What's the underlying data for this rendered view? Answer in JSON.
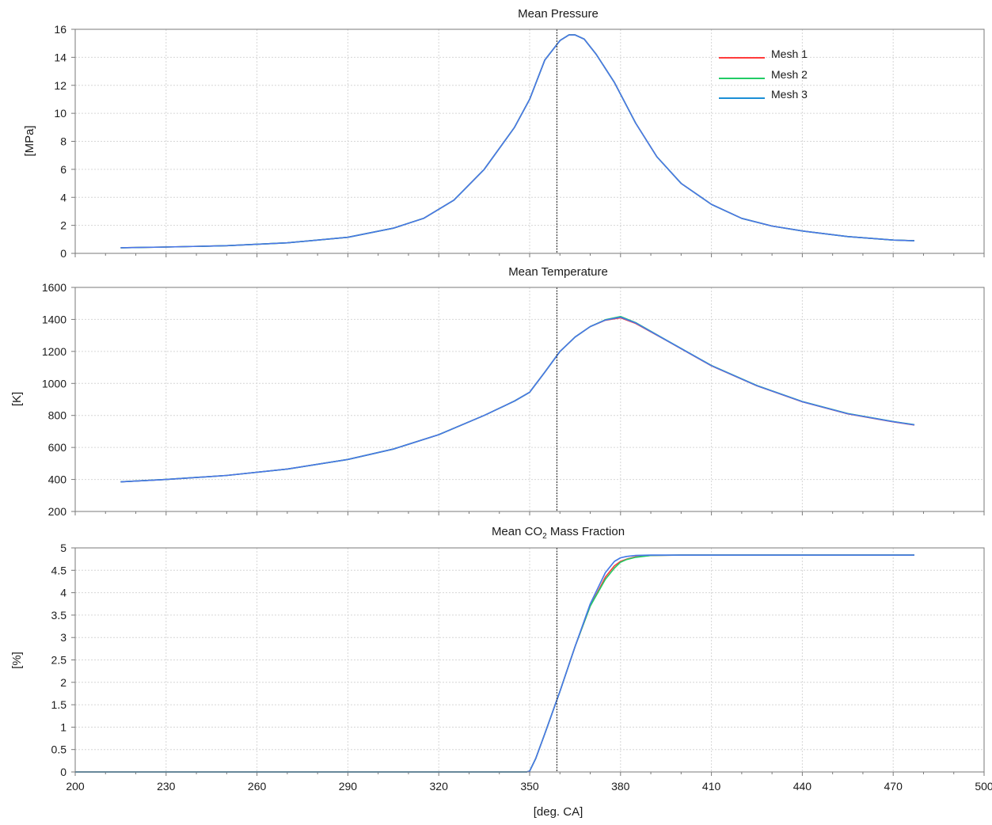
{
  "colors": {
    "mesh1": "#ff3b3b",
    "mesh2": "#22cc66",
    "mesh3": "#1b8fd6",
    "overlay": "#5a6cf0",
    "marker": "#333333",
    "grid": "#d6d6d6"
  },
  "chart_data": [
    {
      "type": "line",
      "title": "Mean Pressure",
      "xlabel": "",
      "ylabel": "[MPa]",
      "xlim": [
        200,
        500
      ],
      "ylim": [
        0,
        16
      ],
      "xticks": [
        200,
        230,
        260,
        290,
        320,
        350,
        380,
        410,
        440,
        470,
        500
      ],
      "yticks": [
        "0",
        "2",
        "4",
        "6",
        "8",
        "10",
        "12",
        "14",
        "16"
      ],
      "grid": true,
      "vline_x": 359,
      "legend": {
        "position": "top-right",
        "entries": [
          "Mesh 1",
          "Mesh 2",
          "Mesh 3"
        ]
      },
      "x": [
        215,
        230,
        250,
        270,
        290,
        305,
        315,
        325,
        335,
        345,
        350,
        355,
        360,
        363,
        365,
        368,
        372,
        378,
        385,
        392,
        400,
        410,
        420,
        430,
        440,
        455,
        470,
        477
      ],
      "series": [
        {
          "name": "Mesh 1",
          "values": [
            0.4,
            0.45,
            0.55,
            0.75,
            1.15,
            1.8,
            2.5,
            3.8,
            6.0,
            9.0,
            11.0,
            13.8,
            15.2,
            15.6,
            15.6,
            15.3,
            14.2,
            12.2,
            9.3,
            6.9,
            5.0,
            3.5,
            2.5,
            1.95,
            1.6,
            1.2,
            0.95,
            0.9
          ]
        },
        {
          "name": "Mesh 2",
          "values": [
            0.4,
            0.45,
            0.55,
            0.75,
            1.15,
            1.8,
            2.5,
            3.8,
            6.0,
            9.0,
            11.0,
            13.8,
            15.2,
            15.6,
            15.6,
            15.3,
            14.2,
            12.2,
            9.3,
            6.9,
            5.0,
            3.5,
            2.5,
            1.95,
            1.6,
            1.2,
            0.95,
            0.9
          ]
        },
        {
          "name": "Mesh 3",
          "values": [
            0.4,
            0.45,
            0.55,
            0.75,
            1.15,
            1.8,
            2.5,
            3.8,
            6.0,
            9.0,
            11.0,
            13.8,
            15.2,
            15.6,
            15.6,
            15.3,
            14.2,
            12.2,
            9.3,
            6.9,
            5.0,
            3.5,
            2.5,
            1.95,
            1.6,
            1.2,
            0.95,
            0.9
          ]
        }
      ]
    },
    {
      "type": "line",
      "title": "Mean Temperature",
      "xlabel": "",
      "ylabel": "[K]",
      "xlim": [
        200,
        500
      ],
      "ylim": [
        200,
        1600
      ],
      "xticks": [
        200,
        230,
        260,
        290,
        320,
        350,
        380,
        410,
        440,
        470,
        500
      ],
      "yticks": [
        "200",
        "400",
        "600",
        "800",
        "1000",
        "1200",
        "1400",
        "1600"
      ],
      "grid": true,
      "vline_x": 359,
      "x": [
        215,
        230,
        250,
        270,
        290,
        305,
        320,
        335,
        345,
        350,
        355,
        360,
        365,
        370,
        375,
        380,
        385,
        395,
        410,
        425,
        440,
        455,
        470,
        477
      ],
      "series": [
        {
          "name": "Mesh 1",
          "values": [
            385,
            400,
            425,
            465,
            525,
            590,
            680,
            800,
            890,
            945,
            1070,
            1200,
            1290,
            1355,
            1395,
            1410,
            1375,
            1270,
            1110,
            985,
            885,
            810,
            760,
            740
          ]
        },
        {
          "name": "Mesh 2",
          "values": [
            385,
            400,
            425,
            465,
            525,
            590,
            680,
            800,
            890,
            945,
            1070,
            1200,
            1290,
            1355,
            1398,
            1418,
            1380,
            1272,
            1112,
            987,
            887,
            812,
            762,
            742
          ]
        },
        {
          "name": "Mesh 3",
          "values": [
            385,
            400,
            425,
            465,
            525,
            590,
            680,
            800,
            890,
            945,
            1070,
            1200,
            1290,
            1355,
            1396,
            1414,
            1378,
            1271,
            1111,
            986,
            886,
            811,
            761,
            741
          ]
        }
      ]
    },
    {
      "type": "line",
      "title": "Mean CO",
      "title_sub": "2",
      "title_suffix": " Mass Fraction",
      "xlabel": "[deg. CA]",
      "ylabel": "[%]",
      "xlim": [
        200,
        500
      ],
      "ylim": [
        0,
        5
      ],
      "xticks": [
        200,
        230,
        260,
        290,
        320,
        350,
        380,
        410,
        440,
        470,
        500
      ],
      "xtick_labels": [
        "200",
        "230",
        "260",
        "290",
        "320",
        "350",
        "380",
        "410",
        "440",
        "470",
        "500"
      ],
      "yticks": [
        "0",
        "0.5",
        "1",
        "1.5",
        "2",
        "2.5",
        "3",
        "3.5",
        "4",
        "4.5",
        "5"
      ],
      "grid": true,
      "vline_x": 359,
      "x": [
        200,
        349,
        350,
        352,
        355,
        360,
        365,
        370,
        375,
        378,
        380,
        382,
        385,
        390,
        400,
        420,
        440,
        460,
        470,
        477
      ],
      "series": [
        {
          "name": "Mesh 1",
          "values": [
            0,
            0,
            0.02,
            0.3,
            0.85,
            1.8,
            2.8,
            3.7,
            4.35,
            4.6,
            4.7,
            4.75,
            4.8,
            4.83,
            4.84,
            4.84,
            4.84,
            4.84,
            4.84,
            4.84
          ]
        },
        {
          "name": "Mesh 2",
          "values": [
            0,
            0,
            0.02,
            0.3,
            0.85,
            1.8,
            2.8,
            3.7,
            4.3,
            4.55,
            4.68,
            4.74,
            4.79,
            4.83,
            4.84,
            4.84,
            4.84,
            4.84,
            4.84,
            4.84
          ]
        },
        {
          "name": "Mesh 3",
          "values": [
            0,
            0,
            0.02,
            0.3,
            0.85,
            1.8,
            2.8,
            3.75,
            4.45,
            4.7,
            4.78,
            4.81,
            4.83,
            4.84,
            4.84,
            4.84,
            4.84,
            4.84,
            4.84,
            4.84
          ]
        }
      ]
    }
  ]
}
